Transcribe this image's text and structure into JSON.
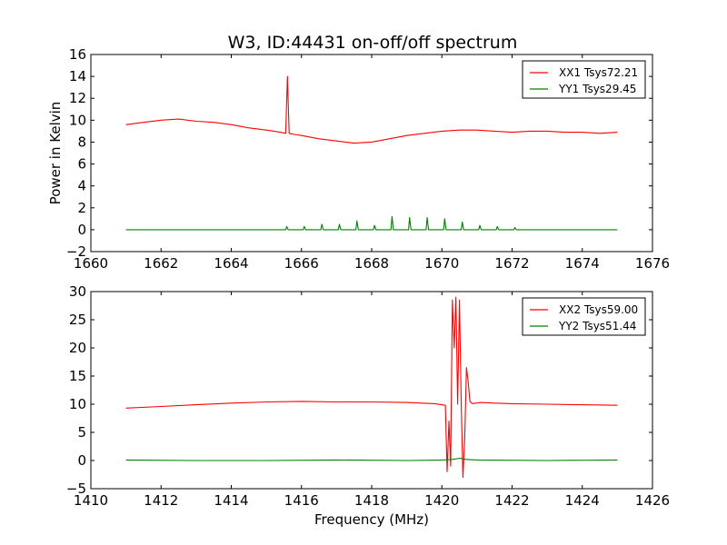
{
  "figure": {
    "title": "W3, ID:44431 on-off/off spectrum"
  },
  "chart_data": [
    {
      "type": "line",
      "title": "W3, ID:44431 on-off/off spectrum",
      "xlabel": "",
      "ylabel": "Power in Kelvin",
      "xlim": [
        1660,
        1676
      ],
      "ylim": [
        -2,
        16
      ],
      "xticks": [
        1660,
        1662,
        1664,
        1666,
        1668,
        1670,
        1672,
        1674,
        1676
      ],
      "yticks": [
        -2,
        0,
        2,
        4,
        6,
        8,
        10,
        12,
        14,
        16
      ],
      "legend_position": "top-right",
      "series": [
        {
          "name": "XX1 Tsys72.21",
          "color": "#ff0000",
          "x": [
            1661.0,
            1661.5,
            1662.0,
            1662.5,
            1663.0,
            1663.5,
            1664.0,
            1664.5,
            1665.0,
            1665.4,
            1665.55,
            1665.6,
            1665.65,
            1665.8,
            1666.0,
            1666.5,
            1667.0,
            1667.5,
            1668.0,
            1668.5,
            1669.0,
            1669.5,
            1670.0,
            1670.5,
            1671.0,
            1671.5,
            1672.0,
            1672.5,
            1673.0,
            1673.5,
            1674.0,
            1674.5,
            1675.0
          ],
          "y": [
            9.6,
            9.8,
            10.0,
            10.1,
            9.9,
            9.8,
            9.6,
            9.3,
            9.1,
            8.9,
            8.8,
            14.0,
            8.8,
            8.7,
            8.6,
            8.3,
            8.1,
            7.9,
            8.0,
            8.3,
            8.6,
            8.8,
            9.0,
            9.1,
            9.1,
            9.0,
            8.9,
            9.0,
            9.0,
            8.9,
            8.9,
            8.8,
            8.9
          ]
        },
        {
          "name": "YY1 Tsys29.45",
          "color": "#008000",
          "x": [
            1661.0,
            1665.55,
            1665.58,
            1665.62,
            1666.05,
            1666.08,
            1666.12,
            1666.55,
            1666.58,
            1666.62,
            1667.05,
            1667.08,
            1667.12,
            1667.55,
            1667.58,
            1667.62,
            1668.05,
            1668.08,
            1668.12,
            1668.55,
            1668.58,
            1668.62,
            1669.05,
            1669.08,
            1669.12,
            1669.55,
            1669.58,
            1669.62,
            1670.05,
            1670.08,
            1670.12,
            1670.55,
            1670.58,
            1670.62,
            1671.05,
            1671.08,
            1671.12,
            1671.55,
            1671.58,
            1671.62,
            1672.05,
            1672.08,
            1672.12,
            1675.0
          ],
          "y": [
            0.0,
            0.0,
            0.3,
            0.0,
            0.0,
            0.3,
            0.0,
            0.0,
            0.5,
            0.0,
            0.0,
            0.5,
            0.0,
            0.0,
            0.8,
            0.0,
            0.0,
            0.4,
            0.0,
            0.0,
            1.2,
            0.0,
            0.0,
            1.1,
            0.0,
            0.0,
            1.1,
            0.0,
            0.0,
            1.0,
            0.0,
            0.0,
            0.7,
            0.0,
            0.0,
            0.4,
            0.0,
            0.0,
            0.3,
            0.0,
            0.0,
            0.2,
            0.0,
            0.0
          ]
        }
      ]
    },
    {
      "type": "line",
      "title": "",
      "xlabel": "Frequency (MHz)",
      "ylabel": "",
      "xlim": [
        1410,
        1426
      ],
      "ylim": [
        -5,
        30
      ],
      "xticks": [
        1410,
        1412,
        1414,
        1416,
        1418,
        1420,
        1422,
        1424,
        1426
      ],
      "yticks": [
        -5,
        0,
        5,
        10,
        15,
        20,
        25,
        30
      ],
      "legend_position": "top-right",
      "series": [
        {
          "name": "XX2 Tsys59.00",
          "color": "#ff0000",
          "x": [
            1411.0,
            1412.0,
            1413.0,
            1414.0,
            1415.0,
            1416.0,
            1417.0,
            1418.0,
            1419.0,
            1419.8,
            1420.1,
            1420.15,
            1420.2,
            1420.25,
            1420.3,
            1420.35,
            1420.4,
            1420.45,
            1420.5,
            1420.55,
            1420.6,
            1420.65,
            1420.7,
            1420.75,
            1420.8,
            1420.85,
            1420.9,
            1420.95,
            1421.0,
            1421.1,
            1421.5,
            1422.0,
            1423.0,
            1424.0,
            1425.0
          ],
          "y": [
            9.3,
            9.6,
            9.9,
            10.2,
            10.4,
            10.5,
            10.4,
            10.4,
            10.3,
            10.1,
            9.8,
            -2.0,
            7.0,
            -1.0,
            28.5,
            20.0,
            29.0,
            10.0,
            28.5,
            10.5,
            -3.0,
            4.0,
            16.5,
            14.0,
            10.5,
            10.2,
            10.1,
            10.2,
            10.2,
            10.3,
            10.2,
            10.1,
            10.0,
            9.9,
            9.8
          ]
        },
        {
          "name": "YY2 Tsys51.44",
          "color": "#008000",
          "x": [
            1411.0,
            1413.0,
            1415.0,
            1417.0,
            1419.0,
            1420.0,
            1420.3,
            1420.5,
            1420.7,
            1421.0,
            1423.0,
            1425.0
          ],
          "y": [
            0.1,
            0.0,
            0.0,
            0.1,
            0.0,
            0.1,
            0.2,
            0.4,
            0.2,
            0.1,
            0.0,
            0.1
          ]
        }
      ]
    }
  ]
}
